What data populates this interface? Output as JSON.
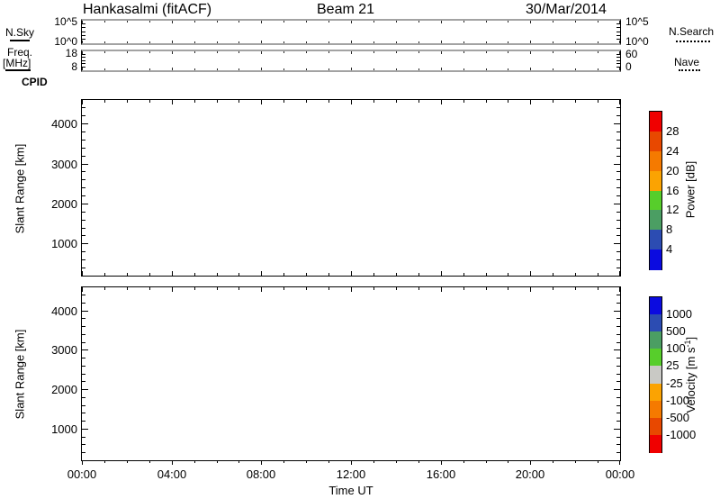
{
  "header": {
    "station": "Hankasalmi (fitACF)",
    "beam": "Beam 21",
    "date": "30/Mar/2014"
  },
  "legend_left": {
    "noise": "N.Sky",
    "freq_line1": "Freq.",
    "freq_line2": "[MHz]",
    "cpid": "CPID"
  },
  "legend_right": {
    "noise": "N.Search",
    "nave": "Nave"
  },
  "noise_panel": {
    "left_top": "10^5",
    "left_bottom": "10^0",
    "right_top": "10^5",
    "right_bottom": "10^0"
  },
  "freq_panel": {
    "left_top": "18",
    "left_bottom": "8",
    "right_top": "60",
    "right_bottom": "0"
  },
  "range_axis": {
    "label": "Slant Range [km]",
    "ticks": [
      "1000",
      "2000",
      "3000",
      "4000"
    ]
  },
  "time_axis": {
    "labels": [
      "00:00",
      "04:00",
      "08:00",
      "12:00",
      "16:00",
      "20:00",
      "00:00"
    ],
    "title": "Time UT"
  },
  "power_colorbar": {
    "title": "Power [dB]",
    "tick_labels": [
      "28",
      "24",
      "20",
      "16",
      "12",
      "8",
      "4"
    ],
    "colors": [
      "#f00000",
      "#e84800",
      "#f57a00",
      "#fba302",
      "#57ce2b",
      "#4b9e63",
      "#2c4cb2",
      "#0b0be0"
    ]
  },
  "velocity_colorbar": {
    "title_prefix": "Velocity [m s",
    "title_sup": "-1",
    "title_suffix": "]",
    "tick_labels": [
      "1000",
      "500",
      "100",
      "25",
      "-25",
      "-100",
      "-500",
      "-1000"
    ],
    "colors": [
      "#0b0be0",
      "#2c4cb2",
      "#4b9e63",
      "#57ce2b",
      "#c9c9c5",
      "#fba302",
      "#f57a00",
      "#e84800",
      "#f00000"
    ]
  },
  "chart_data": [
    {
      "type": "line",
      "panel": "noise",
      "y_scale": "log",
      "y_ticks": [
        "10^0",
        "10^5"
      ],
      "x_range": [
        "00:00",
        "24:00"
      ],
      "series": [
        {
          "name": "N.Sky",
          "line_style": "solid",
          "values": []
        },
        {
          "name": "N.Search",
          "line_style": "dotted",
          "values": []
        }
      ],
      "note": "panel empty - no data plotted"
    },
    {
      "type": "line",
      "panel": "frequency",
      "y_ticks_left": [
        8,
        18
      ],
      "y_ticks_right": [
        0,
        60
      ],
      "x_range": [
        "00:00",
        "24:00"
      ],
      "series": [
        {
          "name": "Freq [MHz]",
          "line_style": "solid",
          "values": []
        },
        {
          "name": "Nave",
          "line_style": "dotted",
          "values": []
        }
      ],
      "note": "panel empty - no data plotted"
    },
    {
      "type": "heatmap",
      "panel": "power",
      "title": "Power [dB]",
      "xlabel": "Time UT",
      "ylabel": "Slant Range [km]",
      "x_ticks": [
        "00:00",
        "04:00",
        "08:00",
        "12:00",
        "16:00",
        "20:00",
        "00:00"
      ],
      "y_ticks": [
        1000,
        2000,
        3000,
        4000
      ],
      "color_scale_stops": [
        4,
        8,
        12,
        16,
        20,
        24,
        28
      ],
      "values": [],
      "note": "panel empty - no data plotted"
    },
    {
      "type": "heatmap",
      "panel": "velocity",
      "title": "Velocity [m s-1]",
      "xlabel": "Time UT",
      "ylabel": "Slant Range [km]",
      "x_ticks": [
        "00:00",
        "04:00",
        "08:00",
        "12:00",
        "16:00",
        "20:00",
        "00:00"
      ],
      "y_ticks": [
        1000,
        2000,
        3000,
        4000
      ],
      "color_scale_stops": [
        -1000,
        -500,
        -100,
        -25,
        25,
        100,
        500,
        1000
      ],
      "values": [],
      "note": "panel empty - no data plotted"
    }
  ]
}
